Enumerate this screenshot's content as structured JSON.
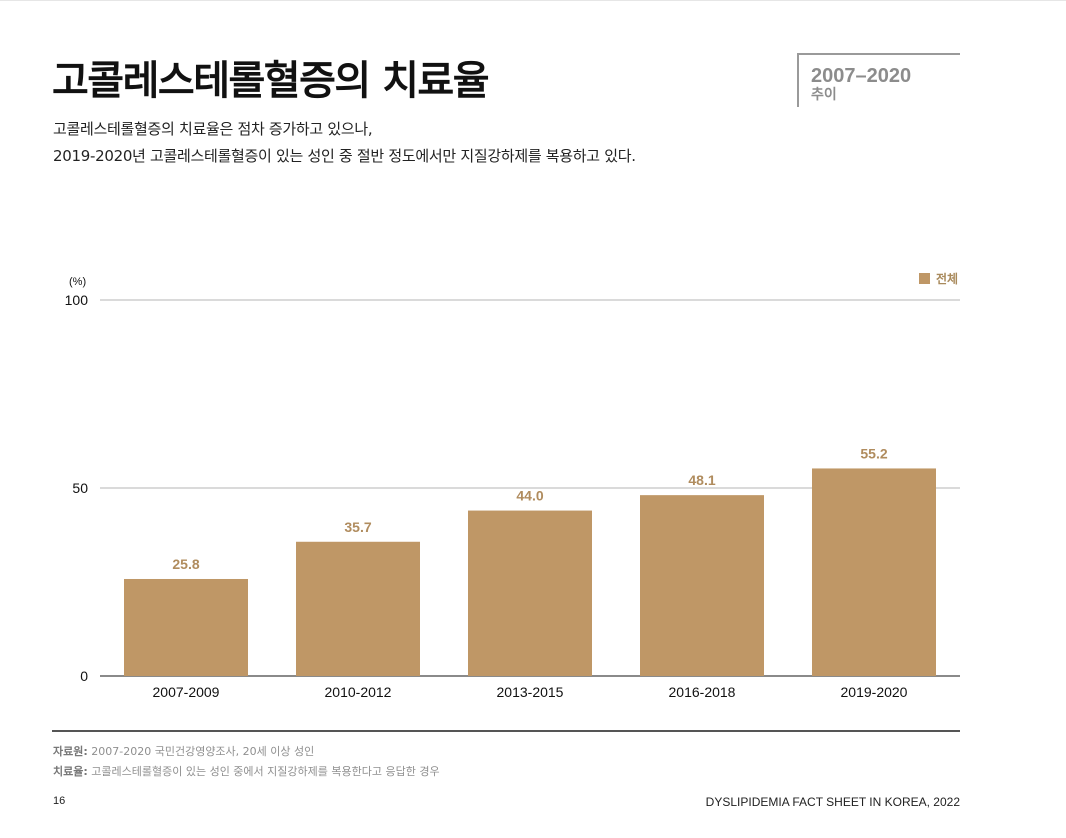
{
  "header": {
    "title": "고콜레스테롤혈증의 치료율",
    "badge_years": "2007–2020",
    "badge_label": "추이",
    "subtitle_line1": "고콜레스테롤혈증의 치료율은 점차 증가하고 있으나,",
    "subtitle_line2": "2019-2020년 고콜레스테롤혈증이 있는 성인 중 절반 정도에서만 지질강하제를 복용하고 있다."
  },
  "chart_data": {
    "type": "bar",
    "categories": [
      "2007-2009",
      "2010-2012",
      "2013-2015",
      "2016-2018",
      "2019-2020"
    ],
    "series": [
      {
        "name": "전체",
        "values": [
          25.8,
          35.7,
          44.0,
          48.1,
          55.2
        ],
        "labels": [
          "25.8",
          "35.7",
          "44.0",
          "48.1",
          "55.2"
        ],
        "color": "#bf9766"
      }
    ],
    "ylabel": "(%)",
    "ylim": [
      0,
      100
    ],
    "yticks": [
      0,
      50,
      100
    ],
    "grid": true,
    "legend_position": "top-right",
    "label_color": "#b08c5e",
    "grid_color": "#b5b5b5"
  },
  "notes": {
    "source_label": "자료원:",
    "source_text": " 2007-2020 국민건강영양조사, 20세 이상 성인",
    "definition_label": "치료율:",
    "definition_text": " 고콜레스테롤혈증이 있는 성인 중에서 지질강하제를 복용한다고 응답한 경우"
  },
  "footer": {
    "page_number": "16",
    "publication": "DYSLIPIDEMIA FACT SHEET IN KOREA, 2022"
  }
}
